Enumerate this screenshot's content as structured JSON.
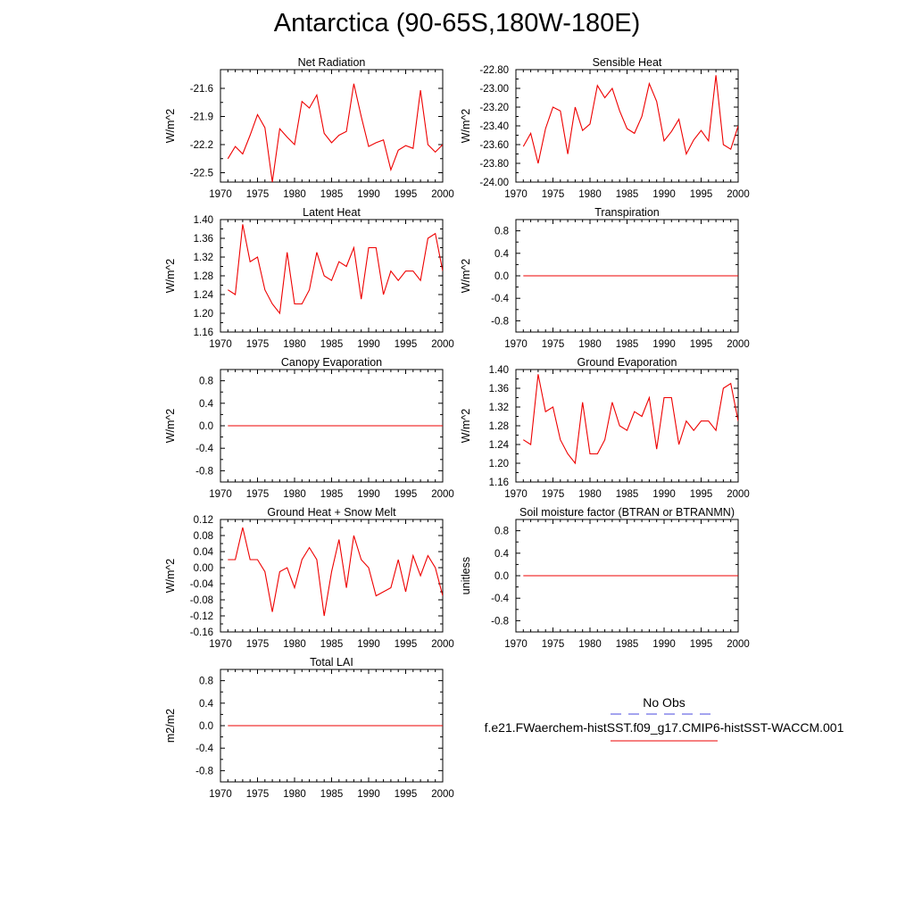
{
  "page": {
    "title": "Antarctica (90-65S,180W-180E)"
  },
  "legend": {
    "obs_label": "No Obs",
    "model_label": "f.e21.FWaerchem-histSST.f09_g17.CMIP6-histSST-WACCM.001",
    "obs_color": "#4a4adf",
    "model_color": "#ee0000"
  },
  "chart_data": [
    {
      "id": "net-radiation",
      "type": "line",
      "title": "Net Radiation",
      "ylabel": "W/m^2",
      "xlim": [
        1970,
        2000
      ],
      "ylim": [
        -22.6,
        -21.4
      ],
      "yticks": [
        "-21.6",
        "-21.9",
        "-22.2",
        "-22.5"
      ],
      "ytick_values": [
        -21.6,
        -21.9,
        -22.2,
        -22.5
      ],
      "xticks": [
        1970,
        1975,
        1980,
        1985,
        1990,
        1995,
        2000
      ],
      "series": [
        {
          "x": [
            1971,
            1972,
            1973,
            1974,
            1975,
            1976,
            1977,
            1978,
            1979,
            1980,
            1981,
            1982,
            1983,
            1984,
            1985,
            1986,
            1987,
            1988,
            1989,
            1990,
            1991,
            1992,
            1993,
            1994,
            1995,
            1996,
            1997,
            1998,
            1999,
            2000
          ],
          "values": [
            -22.35,
            -22.22,
            -22.3,
            -22.1,
            -21.88,
            -22.02,
            -22.6,
            -22.03,
            -22.12,
            -22.2,
            -21.74,
            -21.81,
            -21.67,
            -22.08,
            -22.18,
            -22.1,
            -22.06,
            -21.55,
            -21.9,
            -22.22,
            -22.18,
            -22.15,
            -22.47,
            -22.26,
            -22.21,
            -22.24,
            -21.62,
            -22.2,
            -22.28,
            -22.2
          ]
        }
      ]
    },
    {
      "id": "sensible-heat",
      "type": "line",
      "title": "Sensible Heat",
      "ylabel": "W/m^2",
      "xlim": [
        1970,
        2000
      ],
      "ylim": [
        -24.0,
        -22.8
      ],
      "yticks": [
        "-22.80",
        "-23.00",
        "-23.20",
        "-23.40",
        "-23.60",
        "-23.80",
        "-24.00"
      ],
      "ytick_values": [
        -22.8,
        -23.0,
        -23.2,
        -23.4,
        -23.6,
        -23.8,
        -24.0
      ],
      "xticks": [
        1970,
        1975,
        1980,
        1985,
        1990,
        1995,
        2000
      ],
      "series": [
        {
          "x": [
            1971,
            1972,
            1973,
            1974,
            1975,
            1976,
            1977,
            1978,
            1979,
            1980,
            1981,
            1982,
            1983,
            1984,
            1985,
            1986,
            1987,
            1988,
            1989,
            1990,
            1991,
            1992,
            1993,
            1994,
            1995,
            1996,
            1997,
            1998,
            1999,
            2000
          ],
          "values": [
            -23.62,
            -23.48,
            -23.8,
            -23.43,
            -23.2,
            -23.24,
            -23.7,
            -23.2,
            -23.45,
            -23.38,
            -22.97,
            -23.1,
            -23.0,
            -23.24,
            -23.43,
            -23.48,
            -23.3,
            -22.95,
            -23.14,
            -23.56,
            -23.46,
            -23.33,
            -23.7,
            -23.55,
            -23.45,
            -23.56,
            -22.86,
            -23.6,
            -23.65,
            -23.4
          ]
        }
      ]
    },
    {
      "id": "latent-heat",
      "type": "line",
      "title": "Latent Heat",
      "ylabel": "W/m^2",
      "xlim": [
        1970,
        2000
      ],
      "ylim": [
        1.16,
        1.4
      ],
      "yticks": [
        "1.40",
        "1.36",
        "1.32",
        "1.28",
        "1.24",
        "1.20",
        "1.16"
      ],
      "ytick_values": [
        1.4,
        1.36,
        1.32,
        1.28,
        1.24,
        1.2,
        1.16
      ],
      "xticks": [
        1970,
        1975,
        1980,
        1985,
        1990,
        1995,
        2000
      ],
      "series": [
        {
          "x": [
            1971,
            1972,
            1973,
            1974,
            1975,
            1976,
            1977,
            1978,
            1979,
            1980,
            1981,
            1982,
            1983,
            1984,
            1985,
            1986,
            1987,
            1988,
            1989,
            1990,
            1991,
            1992,
            1993,
            1994,
            1995,
            1996,
            1997,
            1998,
            1999,
            2000
          ],
          "values": [
            1.25,
            1.24,
            1.39,
            1.31,
            1.32,
            1.25,
            1.22,
            1.2,
            1.33,
            1.22,
            1.22,
            1.25,
            1.33,
            1.28,
            1.27,
            1.31,
            1.3,
            1.34,
            1.23,
            1.34,
            1.34,
            1.24,
            1.29,
            1.27,
            1.29,
            1.29,
            1.27,
            1.36,
            1.37,
            1.29
          ]
        }
      ]
    },
    {
      "id": "transpiration",
      "type": "line",
      "title": "Transpiration",
      "ylabel": "W/m^2",
      "xlim": [
        1970,
        2000
      ],
      "ylim": [
        -1.0,
        1.0
      ],
      "yticks": [
        "0.8",
        "0.4",
        "0.0",
        "-0.4",
        "-0.8"
      ],
      "ytick_values": [
        0.8,
        0.4,
        0.0,
        -0.4,
        -0.8
      ],
      "xticks": [
        1970,
        1975,
        1980,
        1985,
        1990,
        1995,
        2000
      ],
      "series": [
        {
          "x": [
            1971,
            2000
          ],
          "values": [
            0.0,
            0.0
          ]
        }
      ]
    },
    {
      "id": "canopy-evaporation",
      "type": "line",
      "title": "Canopy Evaporation",
      "ylabel": "W/m^2",
      "xlim": [
        1970,
        2000
      ],
      "ylim": [
        -1.0,
        1.0
      ],
      "yticks": [
        "0.8",
        "0.4",
        "0.0",
        "-0.4",
        "-0.8"
      ],
      "ytick_values": [
        0.8,
        0.4,
        0.0,
        -0.4,
        -0.8
      ],
      "xticks": [
        1970,
        1975,
        1980,
        1985,
        1990,
        1995,
        2000
      ],
      "series": [
        {
          "x": [
            1971,
            2000
          ],
          "values": [
            0.0,
            0.0
          ]
        }
      ]
    },
    {
      "id": "ground-evaporation",
      "type": "line",
      "title": "Ground Evaporation",
      "ylabel": "W/m^2",
      "xlim": [
        1970,
        2000
      ],
      "ylim": [
        1.16,
        1.4
      ],
      "yticks": [
        "1.40",
        "1.36",
        "1.32",
        "1.28",
        "1.24",
        "1.20",
        "1.16"
      ],
      "ytick_values": [
        1.4,
        1.36,
        1.32,
        1.28,
        1.24,
        1.2,
        1.16
      ],
      "xticks": [
        1970,
        1975,
        1980,
        1985,
        1990,
        1995,
        2000
      ],
      "series": [
        {
          "x": [
            1971,
            1972,
            1973,
            1974,
            1975,
            1976,
            1977,
            1978,
            1979,
            1980,
            1981,
            1982,
            1983,
            1984,
            1985,
            1986,
            1987,
            1988,
            1989,
            1990,
            1991,
            1992,
            1993,
            1994,
            1995,
            1996,
            1997,
            1998,
            1999,
            2000
          ],
          "values": [
            1.25,
            1.24,
            1.39,
            1.31,
            1.32,
            1.25,
            1.22,
            1.2,
            1.33,
            1.22,
            1.22,
            1.25,
            1.33,
            1.28,
            1.27,
            1.31,
            1.3,
            1.34,
            1.23,
            1.34,
            1.34,
            1.24,
            1.29,
            1.27,
            1.29,
            1.29,
            1.27,
            1.36,
            1.37,
            1.29
          ]
        }
      ]
    },
    {
      "id": "ground-heat-snow-melt",
      "type": "line",
      "title": "Ground Heat + Snow Melt",
      "ylabel": "W/m^2",
      "xlim": [
        1970,
        2000
      ],
      "ylim": [
        -0.16,
        0.12
      ],
      "yticks": [
        "0.12",
        "0.08",
        "0.04",
        "0.00",
        "-0.04",
        "-0.08",
        "-0.12",
        "-0.16"
      ],
      "ytick_values": [
        0.12,
        0.08,
        0.04,
        0.0,
        -0.04,
        -0.08,
        -0.12,
        -0.16
      ],
      "xticks": [
        1970,
        1975,
        1980,
        1985,
        1990,
        1995,
        2000
      ],
      "series": [
        {
          "x": [
            1971,
            1972,
            1973,
            1974,
            1975,
            1976,
            1977,
            1978,
            1979,
            1980,
            1981,
            1982,
            1983,
            1984,
            1985,
            1986,
            1987,
            1988,
            1989,
            1990,
            1991,
            1992,
            1993,
            1994,
            1995,
            1996,
            1997,
            1998,
            1999,
            2000
          ],
          "values": [
            0.02,
            0.02,
            0.1,
            0.02,
            0.02,
            -0.01,
            -0.11,
            -0.01,
            0.0,
            -0.05,
            0.02,
            0.05,
            0.02,
            -0.12,
            -0.01,
            0.07,
            -0.05,
            0.08,
            0.02,
            0.0,
            -0.07,
            -0.06,
            -0.05,
            0.02,
            -0.06,
            0.03,
            -0.02,
            0.03,
            0.0,
            -0.07
          ]
        }
      ]
    },
    {
      "id": "soil-moisture-factor",
      "type": "line",
      "title": "Soil moisture factor (BTRAN or BTRANMN)",
      "ylabel": "unitless",
      "xlim": [
        1970,
        2000
      ],
      "ylim": [
        -1.0,
        1.0
      ],
      "yticks": [
        "0.8",
        "0.4",
        "0.0",
        "-0.4",
        "-0.8"
      ],
      "ytick_values": [
        0.8,
        0.4,
        0.0,
        -0.4,
        -0.8
      ],
      "xticks": [
        1970,
        1975,
        1980,
        1985,
        1990,
        1995,
        2000
      ],
      "series": [
        {
          "x": [
            1971,
            2000
          ],
          "values": [
            0.0,
            0.0
          ]
        }
      ]
    },
    {
      "id": "total-lai",
      "type": "line",
      "title": "Total LAI",
      "ylabel": "m2/m2",
      "xlim": [
        1970,
        2000
      ],
      "ylim": [
        -1.0,
        1.0
      ],
      "yticks": [
        "0.8",
        "0.4",
        "0.0",
        "-0.4",
        "-0.8"
      ],
      "ytick_values": [
        0.8,
        0.4,
        0.0,
        -0.4,
        -0.8
      ],
      "xticks": [
        1970,
        1975,
        1980,
        1985,
        1990,
        1995,
        2000
      ],
      "series": [
        {
          "x": [
            1971,
            2000
          ],
          "values": [
            0.0,
            0.0
          ]
        }
      ]
    }
  ]
}
